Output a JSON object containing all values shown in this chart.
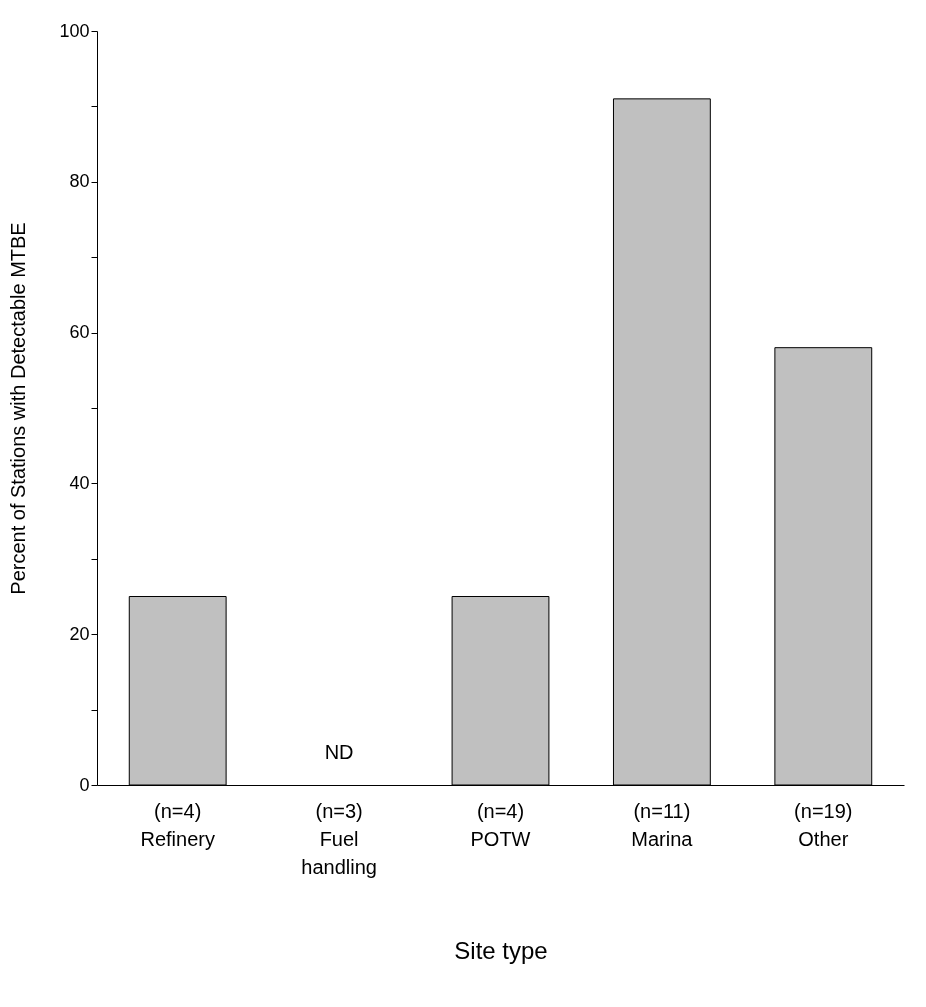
{
  "chart_data": {
    "type": "bar",
    "xlabel": "Site type",
    "ylabel": "Percent of Stations with Detectable MTBE",
    "categories": [
      "(n=4)\nRefinery",
      "(n=3)\nFuel\nhandling",
      "(n=4)\nPOTW",
      "(n=11)\nMarina",
      "(n=19)\nOther"
    ],
    "values": [
      25,
      0,
      25,
      91,
      58
    ],
    "value_labels": [
      null,
      "ND",
      null,
      null,
      null
    ],
    "color": "#c0c0c0",
    "ylim": [
      0,
      100
    ],
    "yticks": [
      0,
      {
        "value": 10,
        "label": null
      },
      20,
      {
        "value": 30,
        "label": null
      },
      40,
      {
        "value": 50,
        "label": null
      },
      60,
      {
        "value": 70,
        "label": null
      },
      80,
      {
        "value": 90,
        "label": null
      },
      100
    ],
    "grid": false
  }
}
